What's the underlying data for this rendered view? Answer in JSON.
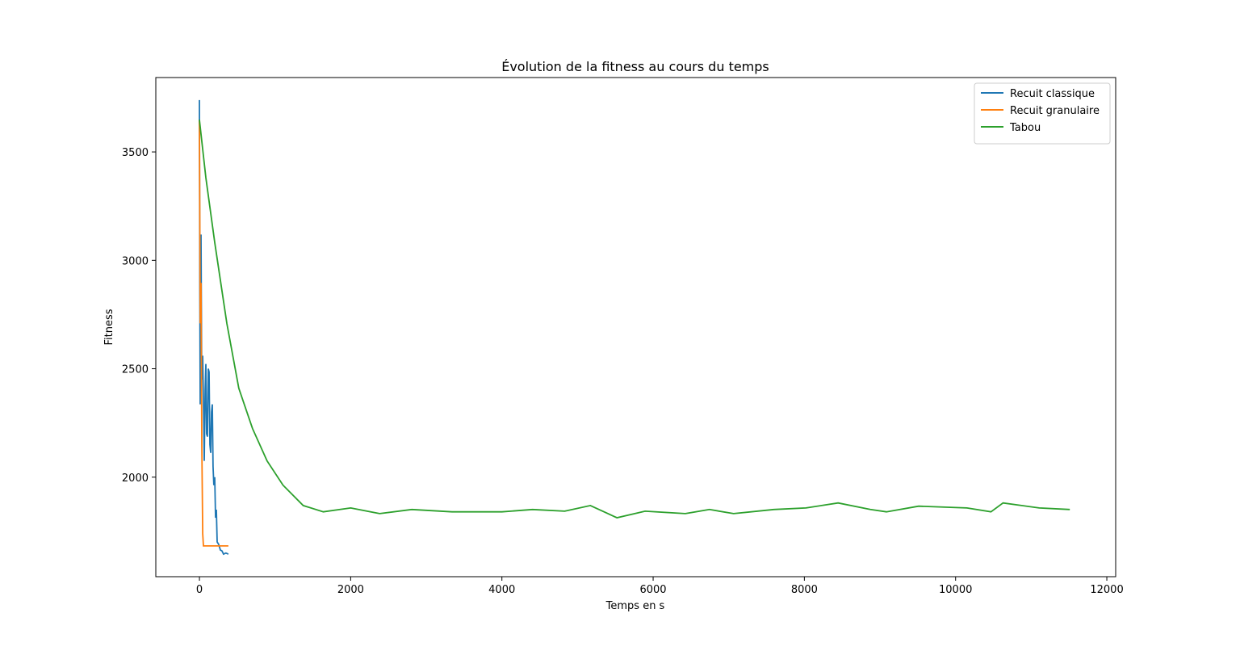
{
  "chart_data": {
    "type": "line",
    "title": "Évolution de la fitness au cours du temps",
    "x_label": "Temps en s",
    "y_label": "Fitness",
    "xlim": [
      -577,
      12117
    ],
    "ylim": [
      1541,
      3843
    ],
    "xticks": [
      0,
      2000,
      4000,
      6000,
      8000,
      10000,
      12000
    ],
    "yticks": [
      2000,
      2500,
      3000,
      3500
    ],
    "legend": "upper right",
    "series": [
      {
        "name": "Recuit classique",
        "color": "#1f77b4",
        "x": [
          0,
          5,
          10,
          15,
          21,
          30,
          43,
          55,
          64,
          75,
          85,
          95,
          106,
          117,
          128,
          138,
          149,
          160,
          170,
          180,
          191,
          202,
          213,
          224,
          234,
          255,
          277,
          298,
          319,
          350,
          383
        ],
        "values": [
          3739,
          2900,
          2336,
          2700,
          3119,
          2450,
          2560,
          2300,
          2075,
          2400,
          2522,
          2200,
          2187,
          2500,
          2485,
          2150,
          2112,
          2300,
          2336,
          2050,
          1963,
          2000,
          1813,
          1850,
          1701,
          1690,
          1664,
          1660,
          1645,
          1650,
          1645
        ]
      },
      {
        "name": "Recuit granulaire",
        "color": "#ff7f0e",
        "x": [
          0,
          10,
          21,
          32,
          43,
          53,
          383
        ],
        "values": [
          3642,
          2709,
          2896,
          2149,
          1739,
          1683,
          1683
        ]
      },
      {
        "name": "Tabou",
        "color": "#2ca02c",
        "x": [
          0,
          85,
          202,
          362,
          521,
          702,
          894,
          1106,
          1372,
          1638,
          2000,
          2383,
          2809,
          3340,
          4000,
          4404,
          4830,
          5170,
          5521,
          5894,
          6426,
          6745,
          7064,
          7596,
          8021,
          8447,
          8872,
          9085,
          9511,
          10149,
          10468,
          10628,
          11106,
          11511
        ],
        "values": [
          3649,
          3381,
          3082,
          2709,
          2410,
          2224,
          2075,
          1963,
          1869,
          1840,
          1858,
          1832,
          1851,
          1840,
          1840,
          1851,
          1843,
          1869,
          1813,
          1843,
          1832,
          1851,
          1832,
          1851,
          1858,
          1881,
          1851,
          1840,
          1866,
          1858,
          1840,
          1881,
          1858,
          1851
        ]
      }
    ]
  }
}
